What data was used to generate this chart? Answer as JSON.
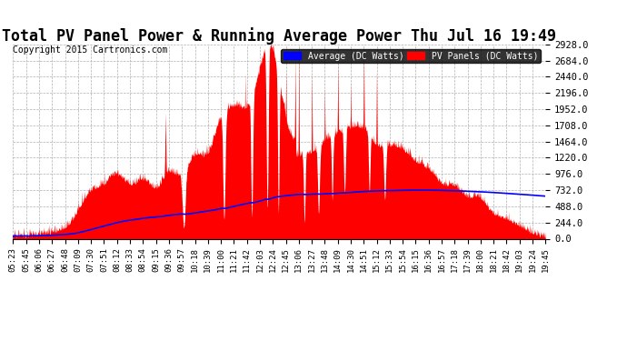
{
  "title": "Total PV Panel Power & Running Average Power Thu Jul 16 19:49",
  "copyright": "Copyright 2015 Cartronics.com",
  "legend_avg": "Average (DC Watts)",
  "legend_pv": "PV Panels (DC Watts)",
  "ymin": 0.0,
  "ymax": 2928.0,
  "ytick_step": 244.0,
  "bg_color": "#ffffff",
  "plot_bg_color": "#ffffff",
  "grid_color": "#b0b0b0",
  "pv_color": "#ff0000",
  "avg_color": "#0000ff",
  "legend_avg_bg": "#0000ff",
  "legend_pv_bg": "#ff0000",
  "title_fontsize": 12,
  "copyright_fontsize": 7,
  "tick_fontsize": 6.5,
  "ytick_fontsize": 7.5
}
